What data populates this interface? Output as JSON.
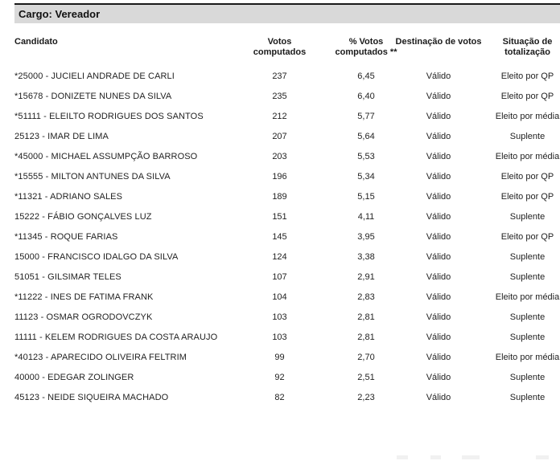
{
  "section": {
    "cargo_label": "Cargo: Vereador"
  },
  "table": {
    "headers": [
      "Candidato",
      "Votos\ncomputados",
      "% Votos\ncomputados **",
      "Destinação de votos",
      "Situação de\ntotalização"
    ],
    "rows": [
      {
        "candidato": "*25000 - JUCIELI ANDRADE DE CARLI",
        "votos": "237",
        "pct": "6,45",
        "destinacao": "Válido",
        "situacao": "Eleito por QP"
      },
      {
        "candidato": "*15678 - DONIZETE NUNES DA SILVA",
        "votos": "235",
        "pct": "6,40",
        "destinacao": "Válido",
        "situacao": "Eleito por QP"
      },
      {
        "candidato": "*51111 - ELEILTO RODRIGUES DOS SANTOS",
        "votos": "212",
        "pct": "5,77",
        "destinacao": "Válido",
        "situacao": "Eleito por média"
      },
      {
        "candidato": "25123 - IMAR DE LIMA",
        "votos": "207",
        "pct": "5,64",
        "destinacao": "Válido",
        "situacao": "Suplente"
      },
      {
        "candidato": "*45000 - MICHAEL ASSUMPÇÃO BARROSO",
        "votos": "203",
        "pct": "5,53",
        "destinacao": "Válido",
        "situacao": "Eleito por média"
      },
      {
        "candidato": "*15555 - MILTON ANTUNES DA SILVA",
        "votos": "196",
        "pct": "5,34",
        "destinacao": "Válido",
        "situacao": "Eleito por QP"
      },
      {
        "candidato": "*11321 - ADRIANO SALES",
        "votos": "189",
        "pct": "5,15",
        "destinacao": "Válido",
        "situacao": "Eleito por QP"
      },
      {
        "candidato": "15222 - FÁBIO GONÇALVES LUZ",
        "votos": "151",
        "pct": "4,11",
        "destinacao": "Válido",
        "situacao": "Suplente"
      },
      {
        "candidato": "*11345 - ROQUE FARIAS",
        "votos": "145",
        "pct": "3,95",
        "destinacao": "Válido",
        "situacao": "Eleito por QP"
      },
      {
        "candidato": "15000 - FRANCISCO IDALGO DA SILVA",
        "votos": "124",
        "pct": "3,38",
        "destinacao": "Válido",
        "situacao": "Suplente"
      },
      {
        "candidato": "51051 - GILSIMAR TELES",
        "votos": "107",
        "pct": "2,91",
        "destinacao": "Válido",
        "situacao": "Suplente"
      },
      {
        "candidato": "*11222 - INES DE FATIMA FRANK",
        "votos": "104",
        "pct": "2,83",
        "destinacao": "Válido",
        "situacao": "Eleito por média"
      },
      {
        "candidato": "11123 - OSMAR OGRODOVCZYK",
        "votos": "103",
        "pct": "2,81",
        "destinacao": "Válido",
        "situacao": "Suplente"
      },
      {
        "candidato": "11111 - KELEM RODRIGUES DA COSTA ARAUJO",
        "votos": "103",
        "pct": "2,81",
        "destinacao": "Válido",
        "situacao": "Suplente"
      },
      {
        "candidato": "*40123 - APARECIDO OLIVEIRA FELTRIM",
        "votos": "99",
        "pct": "2,70",
        "destinacao": "Válido",
        "situacao": "Eleito por média"
      },
      {
        "candidato": "40000 - EDEGAR ZOLINGER",
        "votos": "92",
        "pct": "2,51",
        "destinacao": "Válido",
        "situacao": "Suplente"
      },
      {
        "candidato": "45123 - NEIDE SIQUEIRA MACHADO",
        "votos": "82",
        "pct": "2,23",
        "destinacao": "Válido",
        "situacao": "Suplente"
      }
    ]
  },
  "colors": {
    "band_background": "#d9d9d9",
    "band_top_border": "#1a1a1a",
    "text": "#222222"
  }
}
